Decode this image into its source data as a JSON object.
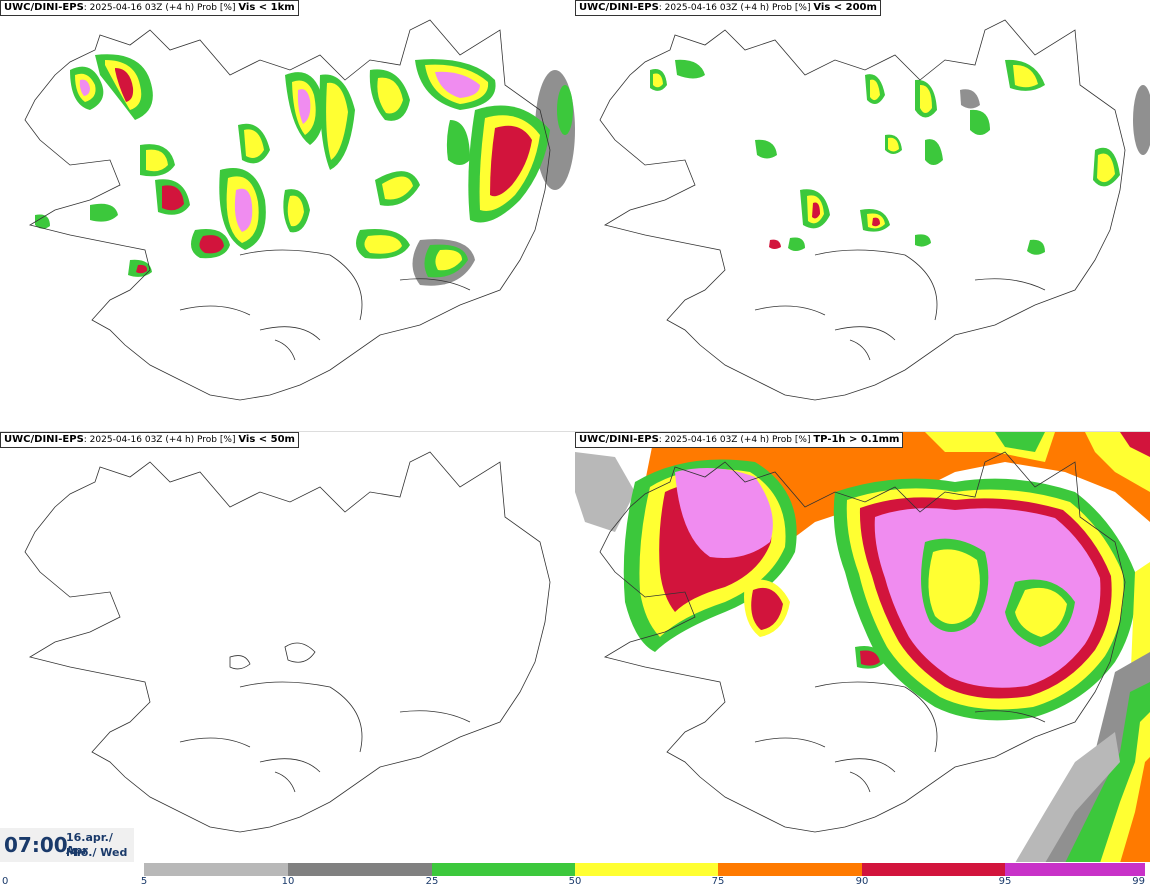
{
  "panels": [
    {
      "id": "tl",
      "model": "UWC/DINI-EPS",
      "meta": "2025-04-16 03Z (+4 h) Prob [%]",
      "variable": "Vis < 1km"
    },
    {
      "id": "tr",
      "model": "UWC/DINI-EPS",
      "meta": "2025-04-16 03Z (+4 h) Prob [%]",
      "variable": "Vis < 200m"
    },
    {
      "id": "bl",
      "model": "UWC/DINI-EPS",
      "meta": "2025-04-16 03Z (+4 h) Prob [%]",
      "variable": "Vis < 50m"
    },
    {
      "id": "br",
      "model": "UWC/DINI-EPS",
      "meta": "2025-04-16 03Z (+4 h) Prob [%]",
      "variable": "TP-1h > 0.1mm"
    }
  ],
  "valid_time": {
    "time": "07:00",
    "date_line": "16.apr./ Apr",
    "day_line": "Mið./ Wed"
  },
  "colorbar": {
    "ticks": [
      "0",
      "5",
      "10",
      "25",
      "50",
      "75",
      "90",
      "95",
      "99"
    ],
    "colors": [
      "#ffffff",
      "#b8b8b8",
      "#808080",
      "#3cc83c",
      "#ffff32",
      "#ff7a00",
      "#d2143c",
      "#c832c8",
      "#f08cf0"
    ]
  }
}
